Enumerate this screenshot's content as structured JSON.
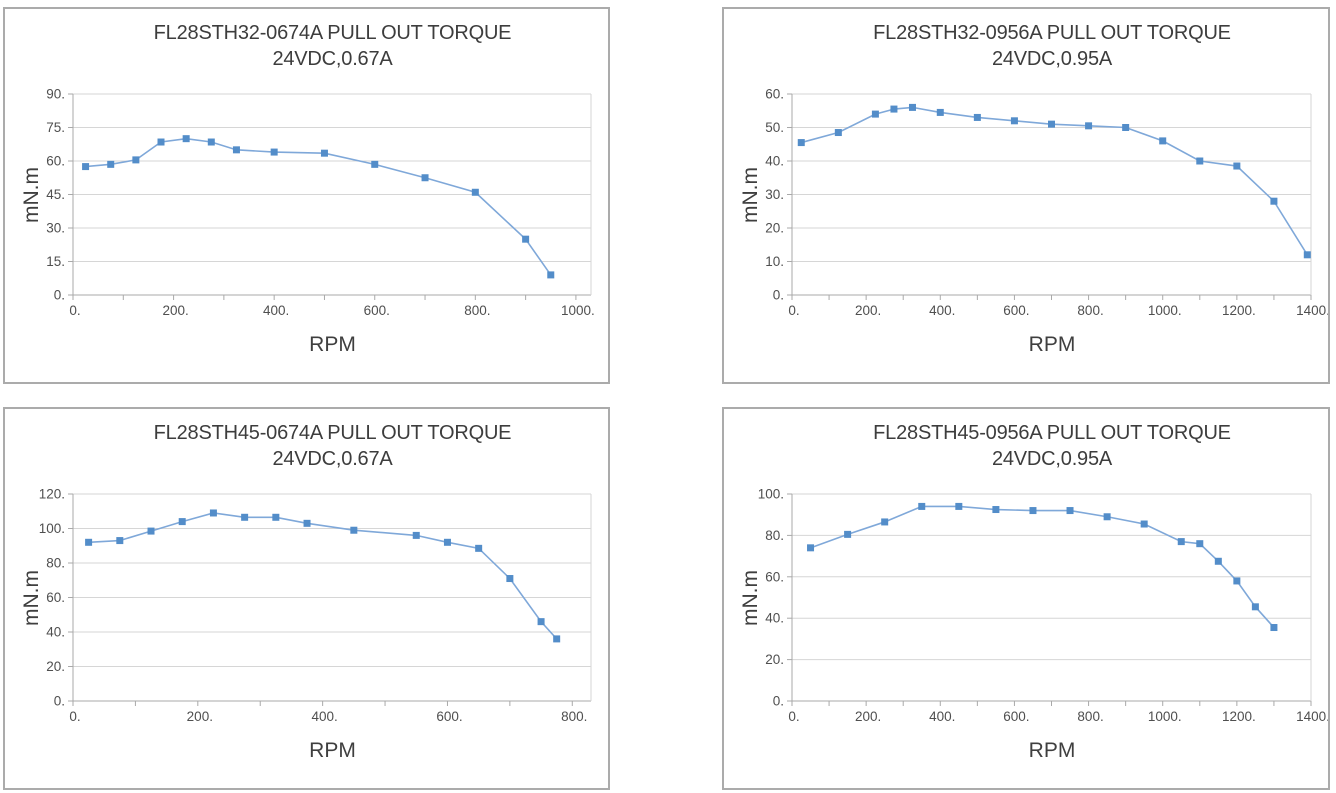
{
  "page": {
    "background": "#ffffff",
    "panel_border_color": "#ababab"
  },
  "styles": {
    "grid_color": "#d6d6d6",
    "axis_color": "#a9a9a9",
    "tick_text_color": "#4f4f4f",
    "title_text_color": "#3d3d3d",
    "line_color": "#7fa8d9",
    "marker_color": "#538dc9"
  },
  "chart_data": [
    {
      "type": "line",
      "title": "FL28STH32-0674A PULL OUT TORQUE",
      "subtitle": "24VDC,0.67A",
      "xlabel": "RPM",
      "ylabel": "mN.m",
      "x": [
        25,
        75,
        125,
        175,
        225,
        275,
        325,
        400,
        500,
        600,
        700,
        800,
        900,
        950
      ],
      "y": [
        57.5,
        58.5,
        60.5,
        68.5,
        70,
        68.5,
        65,
        64,
        63.5,
        58.5,
        52.5,
        46,
        25,
        9
      ],
      "xlim": [
        0,
        1030
      ],
      "ylim": [
        0,
        90
      ],
      "x_label_max": 1000,
      "x_label_step": 200,
      "x_minor_step": 100,
      "y_step": 15,
      "tick_suffix": ".",
      "grid": "horizontal",
      "legend": "none",
      "marker": "square"
    },
    {
      "type": "line",
      "title": "FL28STH32-0956A PULL OUT TORQUE",
      "subtitle": "24VDC,0.95A",
      "xlabel": "RPM",
      "ylabel": "mN.m",
      "x": [
        25,
        125,
        225,
        275,
        325,
        400,
        500,
        600,
        700,
        800,
        900,
        1000,
        1100,
        1200,
        1300,
        1390
      ],
      "y": [
        45.5,
        48.5,
        54,
        55.5,
        56,
        54.5,
        53,
        52,
        51,
        50.5,
        50,
        46,
        40,
        38.5,
        28,
        12
      ],
      "xlim": [
        0,
        1400
      ],
      "ylim": [
        0,
        60
      ],
      "x_label_max": 1400,
      "x_label_step": 200,
      "x_minor_step": 100,
      "y_step": 10,
      "tick_suffix": ".",
      "grid": "horizontal",
      "legend": "none",
      "marker": "square"
    },
    {
      "type": "line",
      "title": "FL28STH45-0674A PULL OUT TORQUE",
      "subtitle": "24VDC,0.67A",
      "xlabel": "RPM",
      "ylabel": "mN.m",
      "x": [
        25,
        75,
        125,
        175,
        225,
        275,
        325,
        375,
        450,
        550,
        600,
        650,
        700,
        750,
        775
      ],
      "y": [
        92,
        93,
        98.5,
        104,
        109,
        106.5,
        106.5,
        103,
        99,
        96,
        92,
        88.5,
        71,
        46,
        36
      ],
      "xlim": [
        0,
        830
      ],
      "ylim": [
        0,
        120
      ],
      "x_label_max": 800,
      "x_label_step": 200,
      "x_minor_step": 100,
      "y_step": 20,
      "tick_suffix": ".",
      "grid": "horizontal",
      "legend": "none",
      "marker": "square"
    },
    {
      "type": "line",
      "title": "FL28STH45-0956A PULL OUT TORQUE",
      "subtitle": "24VDC,0.95A",
      "xlabel": "RPM",
      "ylabel": "mN.m",
      "x": [
        50,
        150,
        250,
        350,
        450,
        550,
        650,
        750,
        850,
        950,
        1050,
        1100,
        1150,
        1200,
        1250,
        1300
      ],
      "y": [
        74,
        80.5,
        86.5,
        94,
        94,
        92.5,
        92,
        92,
        89,
        85.5,
        77,
        76,
        67.5,
        58,
        45.5,
        35.5
      ],
      "xlim": [
        0,
        1400
      ],
      "ylim": [
        0,
        100
      ],
      "x_label_max": 1400,
      "x_label_step": 200,
      "x_minor_step": 100,
      "y_step": 20,
      "tick_suffix": ".",
      "grid": "horizontal",
      "legend": "none",
      "marker": "square"
    }
  ]
}
